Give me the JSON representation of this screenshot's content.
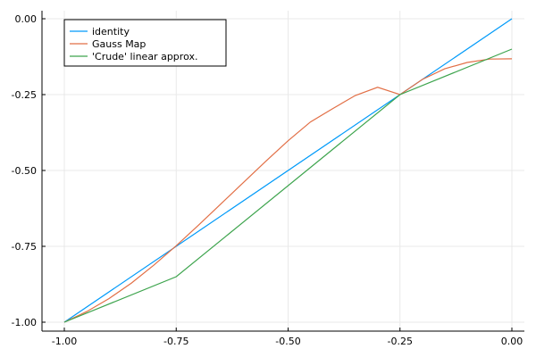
{
  "chart_data": {
    "type": "line",
    "title": "",
    "xlabel": "",
    "ylabel": "",
    "xlim": [
      -1.0,
      0.0
    ],
    "ylim": [
      -1.0,
      0.0
    ],
    "xticks": [
      "-1.00",
      "-0.75",
      "-0.50",
      "-0.25",
      "0.00"
    ],
    "xtick_values": [
      -1.0,
      -0.75,
      -0.5,
      -0.25,
      0.0
    ],
    "yticks": [
      "-1.00",
      "-0.75",
      "-0.50",
      "-0.25",
      "0.00"
    ],
    "ytick_values": [
      -1.0,
      -0.75,
      -0.5,
      -0.25,
      0.0
    ],
    "grid": true,
    "legend_position": "top-left",
    "series": [
      {
        "name": "identity",
        "color": "#009af9",
        "x": [
          -1.0,
          0.0
        ],
        "y": [
          -1.0,
          0.0
        ]
      },
      {
        "name": "Gauss Map",
        "color": "#e26f46",
        "x": [
          -1.0,
          -0.95,
          -0.9,
          -0.85,
          -0.8,
          -0.75,
          -0.7,
          -0.65,
          -0.6,
          -0.55,
          -0.5,
          -0.45,
          -0.4,
          -0.35,
          -0.3,
          -0.25,
          -0.2,
          -0.15,
          -0.1,
          -0.05,
          0.0
        ],
        "y": [
          -1.0,
          -0.965,
          -0.922,
          -0.871,
          -0.812,
          -0.748,
          -0.68,
          -0.61,
          -0.54,
          -0.47,
          -0.402,
          -0.34,
          -0.296,
          -0.253,
          -0.226,
          -0.25,
          -0.2,
          -0.165,
          -0.144,
          -0.133,
          -0.132
        ]
      },
      {
        "name": "'Crude' linear approx.",
        "color": "#3da44d",
        "x": [
          -1.0,
          -0.75,
          -0.25,
          0.0
        ],
        "y": [
          -1.0,
          -0.85,
          -0.25,
          -0.1
        ]
      }
    ]
  }
}
